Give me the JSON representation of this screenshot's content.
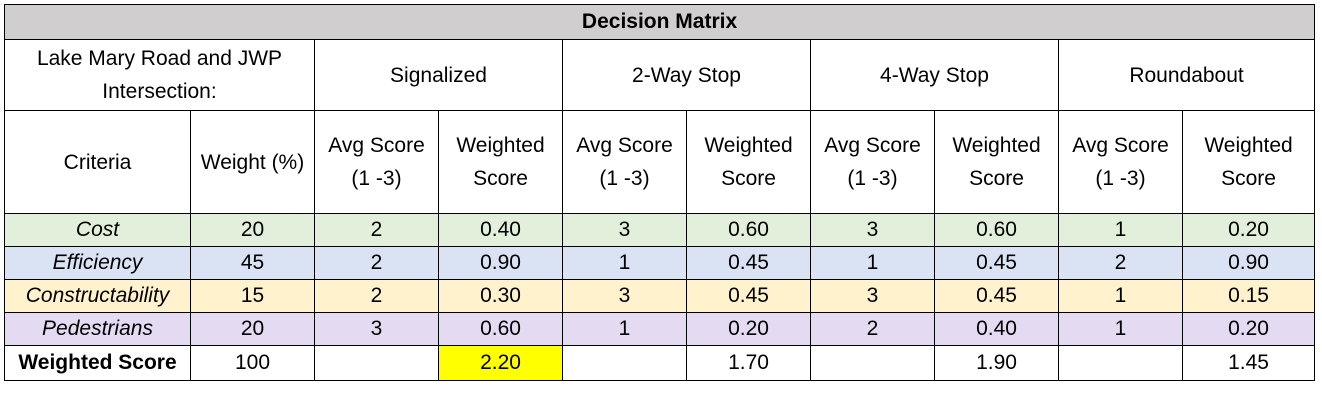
{
  "title": "Decision Matrix",
  "intersection_label": "Lake Mary Road and JWP Intersection:",
  "options": [
    "Signalized",
    "2-Way Stop",
    "4-Way Stop",
    "Roundabout"
  ],
  "criteria_header": "Criteria",
  "weight_header": "Weight (%)",
  "avg_score_header": "Avg Score (1 -3)",
  "weighted_score_header": "Weighted Score",
  "rows": [
    {
      "criteria": "Cost",
      "weight": "20",
      "cells": [
        "2",
        "0.40",
        "3",
        "0.60",
        "3",
        "0.60",
        "1",
        "0.20"
      ],
      "color": "#e2efda"
    },
    {
      "criteria": "Efficiency",
      "weight": "45",
      "cells": [
        "2",
        "0.90",
        "1",
        "0.45",
        "1",
        "0.45",
        "2",
        "0.90"
      ],
      "color": "#dae3f3"
    },
    {
      "criteria": "Constructability",
      "weight": "15",
      "cells": [
        "2",
        "0.30",
        "3",
        "0.45",
        "3",
        "0.45",
        "1",
        "0.15"
      ],
      "color": "#fff2cc"
    },
    {
      "criteria": "Pedestrians",
      "weight": "20",
      "cells": [
        "3",
        "0.60",
        "1",
        "0.20",
        "2",
        "0.40",
        "1",
        "0.20"
      ],
      "color": "#e4dbf2"
    }
  ],
  "total": {
    "label": "Weighted Score",
    "weight": "100",
    "cells": [
      "",
      "2.20",
      "",
      "1.70",
      "",
      "1.90",
      "",
      "1.45"
    ],
    "highlight_color": "#ffff00"
  }
}
